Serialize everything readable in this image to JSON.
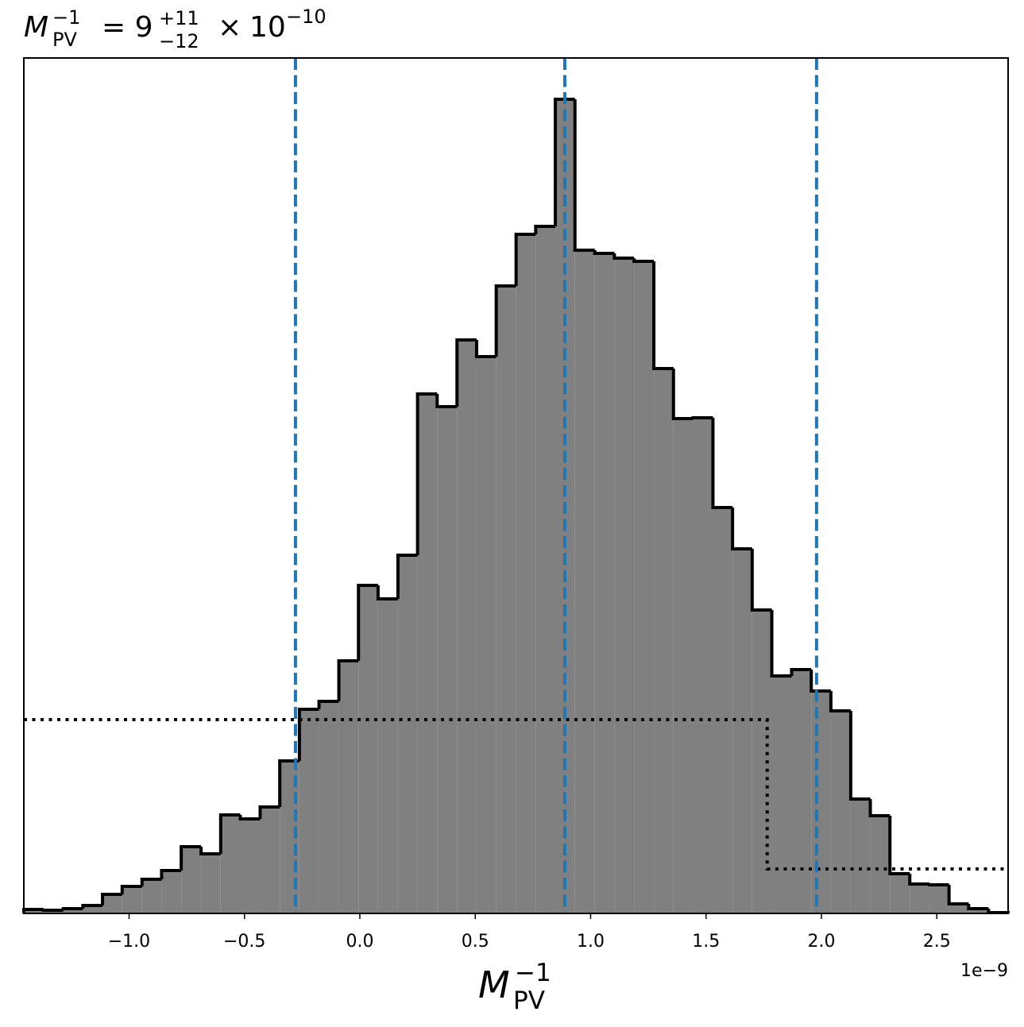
{
  "chart_data": {
    "type": "histogram",
    "title_parts": [
      "M",
      "PV",
      "−1",
      "= 9",
      "+11",
      "−12",
      "×",
      "10",
      "−10"
    ],
    "xlabel_parts": [
      "M",
      "PV",
      "−1"
    ],
    "x_offset_label": "1e−9",
    "xlim": [
      -1.456,
      2.809
    ],
    "ylim": [
      0,
      1077
    ],
    "xticks": [
      {
        "value": -1,
        "label": "−1.0"
      },
      {
        "value": -0.5,
        "label": "−0.5"
      },
      {
        "value": 0,
        "label": "0.0"
      },
      {
        "value": 0.5,
        "label": "0.5"
      },
      {
        "value": 1,
        "label": "1.0"
      },
      {
        "value": 1.5,
        "label": "1.5"
      },
      {
        "value": 2,
        "label": "2.0"
      },
      {
        "value": 2.5,
        "label": "2.5"
      }
    ],
    "bins": [
      -1.456,
      -1.371,
      -1.285,
      -1.2,
      -1.115,
      -1.03,
      -0.944,
      -0.859,
      -0.774,
      -0.688,
      -0.603,
      -0.518,
      -0.432,
      -0.347,
      -0.262,
      -0.177,
      -0.091,
      -0.006,
      0.079,
      0.165,
      0.25,
      0.335,
      0.421,
      0.506,
      0.591,
      0.677,
      0.762,
      0.847,
      0.932,
      1.018,
      1.103,
      1.188,
      1.274,
      1.359,
      1.444,
      1.53,
      1.615,
      1.7,
      1.785,
      1.871,
      1.956,
      2.041,
      2.127,
      2.212,
      2.297,
      2.383,
      2.468,
      2.553,
      2.638,
      2.724,
      2.809
    ],
    "values": [
      5,
      4,
      6,
      10,
      24,
      34,
      43,
      54,
      84,
      75,
      124,
      119,
      134,
      192,
      257,
      267,
      318,
      413,
      396,
      451,
      654,
      638,
      722,
      701,
      790,
      855,
      865,
      1025,
      835,
      831,
      825,
      821,
      686,
      623,
      624,
      511,
      459,
      382,
      299,
      307,
      280,
      255,
      144,
      123,
      50,
      37,
      36,
      12,
      6,
      1
    ],
    "color": "#808080",
    "edge_color": "#000000",
    "prior": {
      "x": [
        -1.456,
        1.765,
        1.765,
        2.809
      ],
      "values": [
        244,
        244,
        56,
        56
      ],
      "color": "#000000"
    },
    "vlines": {
      "x": [
        -0.279,
        0.888,
        1.979
      ],
      "color": "#1f77b4"
    }
  }
}
